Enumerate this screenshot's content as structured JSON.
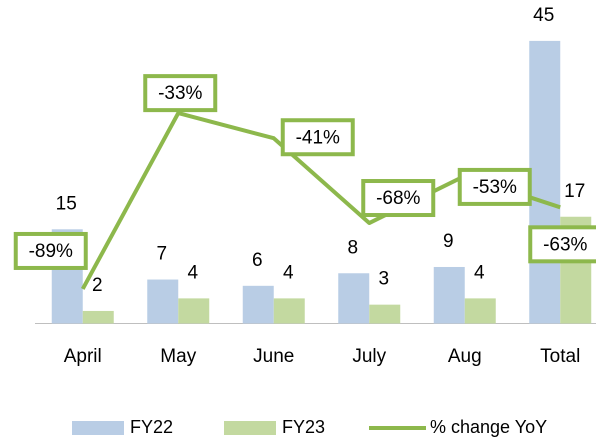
{
  "chart_data": {
    "type": "bar",
    "categories": [
      "April",
      "May",
      "June",
      "July",
      "Aug",
      "Total"
    ],
    "series": [
      {
        "name": "FY22",
        "type": "bar",
        "color": "#b9cde5",
        "values": [
          15,
          7,
          6,
          8,
          9,
          45
        ]
      },
      {
        "name": "FY23",
        "type": "bar",
        "color": "#c3d9a0",
        "values": [
          2,
          4,
          4,
          3,
          4,
          17
        ]
      },
      {
        "name": "% change  YoY",
        "type": "line",
        "axis": "y2",
        "color": "#8db84c",
        "values": [
          -89,
          -33,
          -41,
          -68,
          -53,
          -63
        ],
        "value_labels": [
          "-89%",
          "-33%",
          "-41%",
          "-68%",
          "-53%",
          "-63%"
        ]
      }
    ],
    "ylim": [
      0,
      50
    ],
    "y2lim": [
      -100,
      0
    ],
    "legend": "bottom"
  }
}
